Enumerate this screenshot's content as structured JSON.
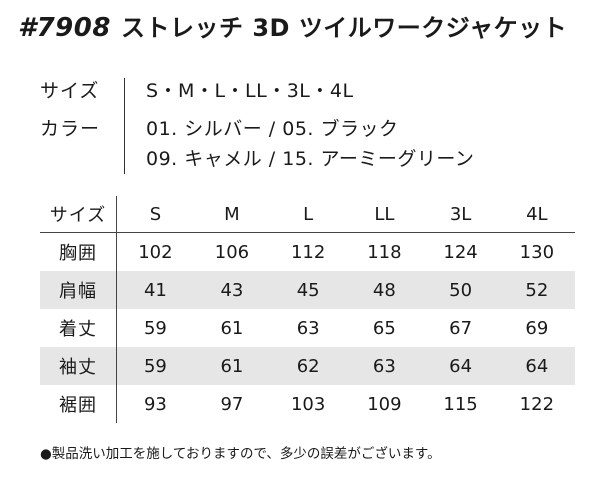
{
  "title": {
    "number": "#7908",
    "name": "ストレッチ 3D ツイルワークジャケット"
  },
  "specs": {
    "size_label": "サイズ",
    "size_value": "S・M・L・LL・3L・4L",
    "color_label": "カラー",
    "color_line1": "01. シルバー / 05. ブラック",
    "color_line2": "09. キャメル / 15. アーミーグリーン"
  },
  "size_table": {
    "corner": "サイズ",
    "sizes": [
      "S",
      "M",
      "L",
      "LL",
      "3L",
      "4L"
    ],
    "rows": [
      {
        "label": "胸囲",
        "values": [
          "102",
          "106",
          "112",
          "118",
          "124",
          "130"
        ]
      },
      {
        "label": "肩幅",
        "values": [
          "41",
          "43",
          "45",
          "48",
          "50",
          "52"
        ]
      },
      {
        "label": "着丈",
        "values": [
          "59",
          "61",
          "63",
          "65",
          "67",
          "69"
        ]
      },
      {
        "label": "袖丈",
        "values": [
          "59",
          "61",
          "62",
          "63",
          "64",
          "64"
        ]
      },
      {
        "label": "裾囲",
        "values": [
          "93",
          "97",
          "103",
          "109",
          "115",
          "122"
        ]
      }
    ]
  },
  "note": "●製品洗い加工を施しておりますので、多少の誤差がございます。"
}
